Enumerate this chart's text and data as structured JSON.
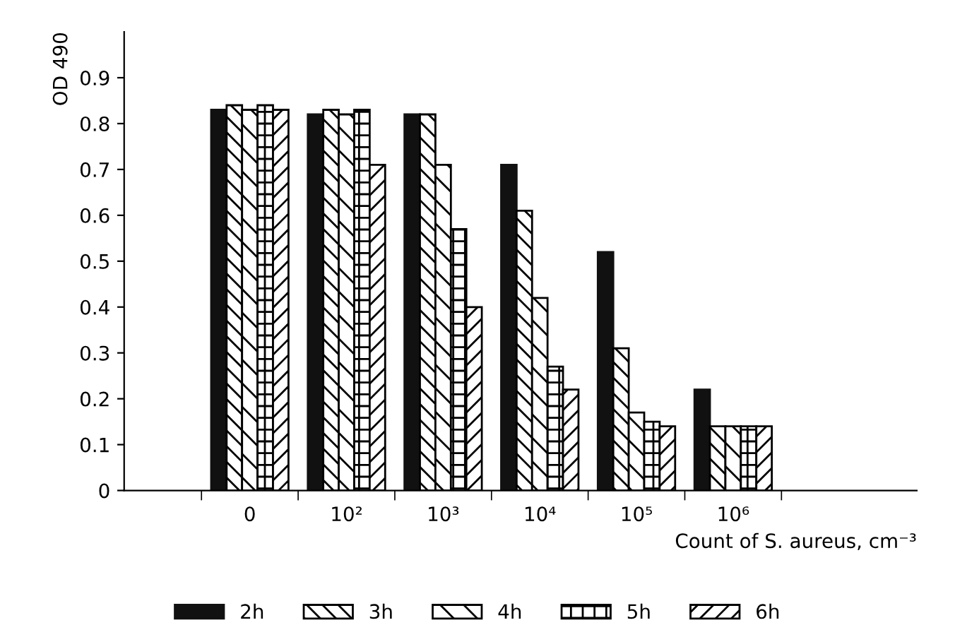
{
  "chart_data": {
    "type": "bar",
    "xlabel": "Count of S. aureus, cm⁻³",
    "ylabel": "OD 490",
    "categories": [
      "0",
      "10²",
      "10³",
      "10⁴",
      "10⁵",
      "10⁶"
    ],
    "series": [
      {
        "name": "2h",
        "color": "#111111",
        "values": [
          0.83,
          0.82,
          0.82,
          0.71,
          0.52,
          0.22
        ]
      },
      {
        "name": "3h",
        "color": "#000000",
        "values": [
          0.84,
          0.83,
          0.82,
          0.61,
          0.31,
          0.14
        ]
      },
      {
        "name": "4h",
        "color": "#000000",
        "values": [
          0.83,
          0.82,
          0.71,
          0.42,
          0.17,
          0.14
        ]
      },
      {
        "name": "5h",
        "color": "#000000",
        "values": [
          0.84,
          0.83,
          0.57,
          0.27,
          0.15,
          0.14
        ]
      },
      {
        "name": "6h",
        "color": "#000000",
        "values": [
          0.83,
          0.71,
          0.4,
          0.22,
          0.14,
          0.14
        ]
      }
    ],
    "ylim": [
      0,
      1.0
    ],
    "yticks": [
      0,
      0.1,
      0.2,
      0.3,
      0.4,
      0.5,
      0.6,
      0.7,
      0.8,
      0.9
    ],
    "grid": false,
    "legend": "bottom"
  }
}
